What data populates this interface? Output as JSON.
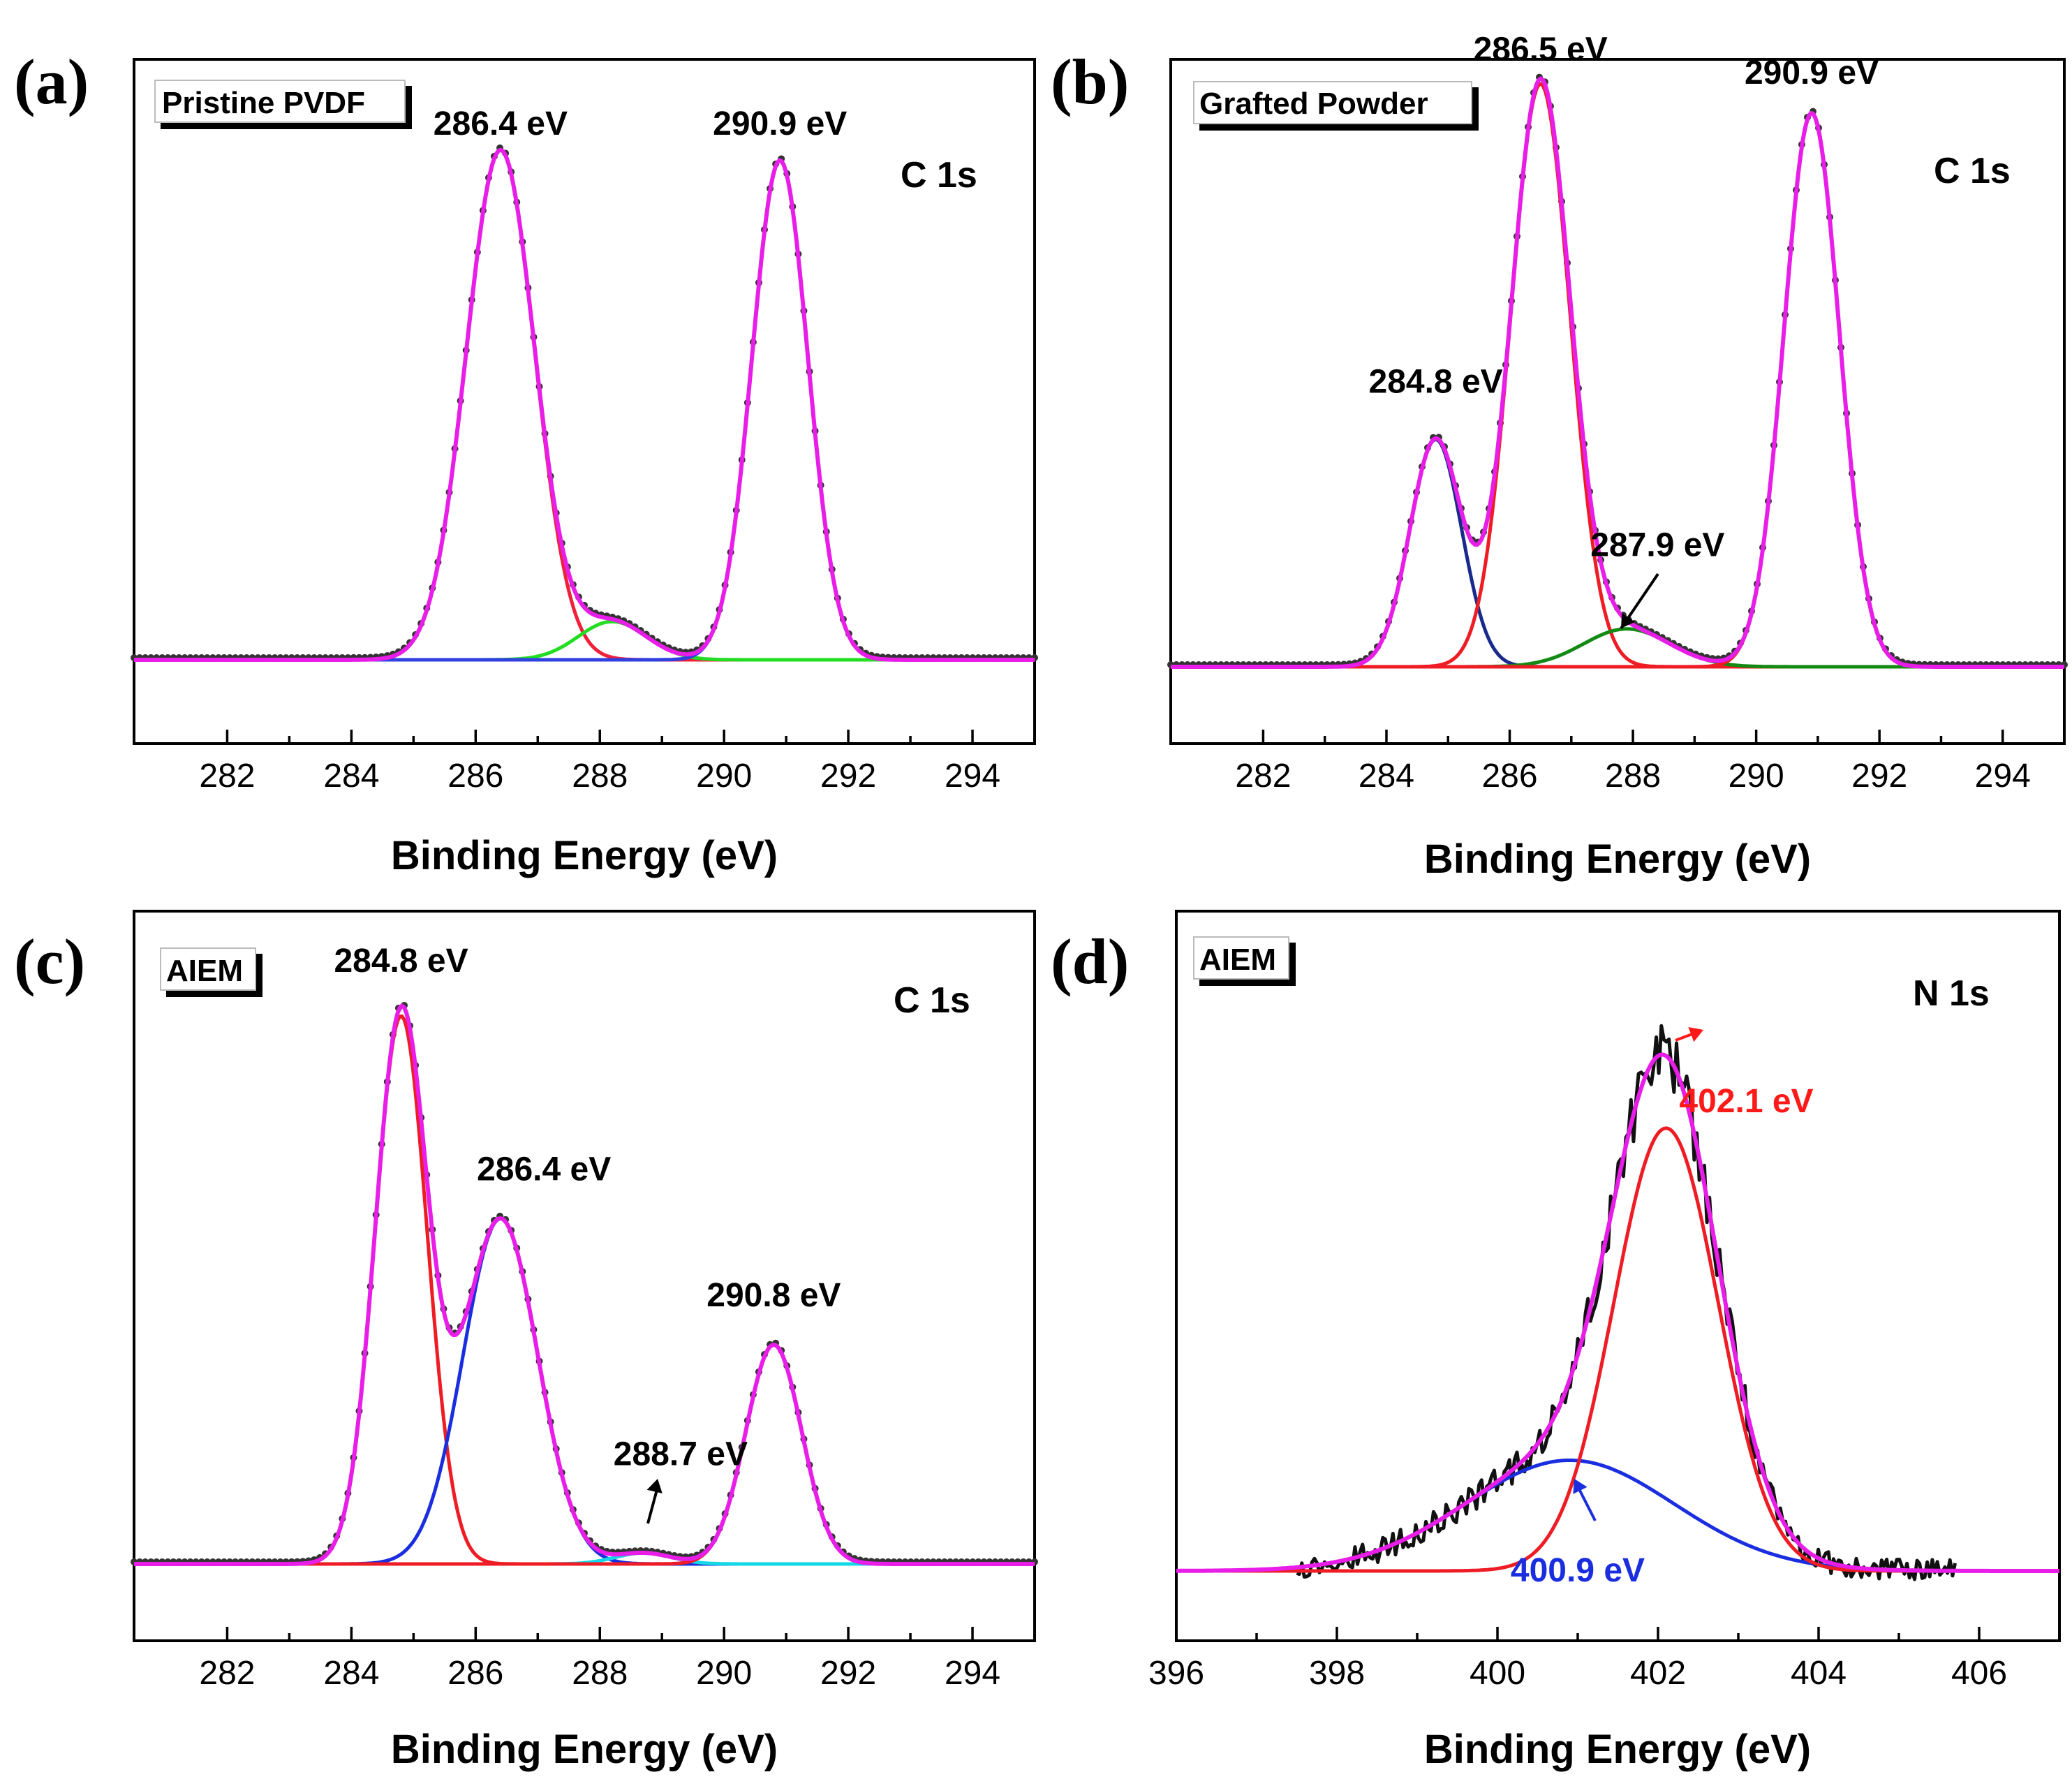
{
  "chart_data": [
    {
      "type": "line",
      "panel_label": "(a)",
      "sample": "Pristine PVDF",
      "core_level": "C 1s",
      "xlabel": "Binding Energy (eV)",
      "ylabel": "",
      "xlim": [
        280.5,
        295
      ],
      "xticks": [
        282,
        284,
        286,
        288,
        290,
        292,
        294
      ],
      "ylim": [
        -0.15,
        1.18
      ],
      "data_style": "dots",
      "noise": 0.0,
      "series": [
        {
          "name": "component 286.4 eV",
          "color": "#f0203a",
          "peaks": [
            [
              286.4,
              1.0,
              0.55
            ]
          ]
        },
        {
          "name": "component 288.2 eV",
          "color": "#22dd22",
          "peaks": [
            [
              288.2,
              0.075,
              0.55
            ]
          ]
        },
        {
          "name": "component 290.9 eV",
          "color": "#3040e0",
          "peaks": [
            [
              290.9,
              0.98,
              0.45
            ]
          ]
        },
        {
          "name": "envelope",
          "color": "#e81ee8",
          "role": "envelope"
        }
      ],
      "annotations": [
        {
          "text": "286.4 eV",
          "x": 286.4,
          "y": 1.03,
          "color": "#000000"
        },
        {
          "text": "290.9 eV",
          "x": 290.9,
          "y": 1.03,
          "color": "#000000"
        }
      ]
    },
    {
      "type": "line",
      "panel_label": "(b)",
      "sample": "Grafted Powder",
      "core_level": "C 1s",
      "xlabel": "Binding Energy (eV)",
      "ylabel": "",
      "xlim": [
        280.5,
        295
      ],
      "xticks": [
        282,
        284,
        286,
        288,
        290,
        292,
        294
      ],
      "ylim": [
        -0.15,
        1.12
      ],
      "data_style": "dots",
      "noise": 0.0,
      "series": [
        {
          "name": "component 284.8 eV",
          "color": "#1a2a8c",
          "peaks": [
            [
              284.8,
              0.39,
              0.42
            ]
          ]
        },
        {
          "name": "component 286.5 eV",
          "color": "#ee1c24",
          "peaks": [
            [
              286.5,
              1.0,
              0.48
            ]
          ]
        },
        {
          "name": "component 287.9 eV",
          "color": "#138a13",
          "peaks": [
            [
              287.9,
              0.065,
              0.7
            ]
          ]
        },
        {
          "name": "component 290.9 eV",
          "color": "#ee1c24",
          "peaks": [
            [
              290.9,
              0.95,
              0.45
            ]
          ]
        },
        {
          "name": "envelope",
          "color": "#e81ee8",
          "role": "envelope"
        }
      ],
      "annotations": [
        {
          "text": "284.8 eV",
          "x": 284.8,
          "y": 0.47,
          "color": "#000000"
        },
        {
          "text": "286.5 eV",
          "x": 286.5,
          "y": 1.04,
          "color": "#000000"
        },
        {
          "text": "287.9 eV",
          "x": 288.4,
          "y": 0.19,
          "color": "#000000"
        },
        {
          "text": "290.9 eV",
          "x": 290.9,
          "y": 1.0,
          "color": "#000000"
        }
      ]
    },
    {
      "type": "line",
      "panel_label": "(c)",
      "sample": "AIEM",
      "core_level": "C 1s",
      "xlabel": "Binding Energy (eV)",
      "ylabel": "",
      "xlim": [
        280.5,
        295
      ],
      "xticks": [
        282,
        284,
        286,
        288,
        290,
        292,
        294
      ],
      "ylim": [
        -0.15,
        1.12
      ],
      "data_style": "dots",
      "noise": 0.0,
      "series": [
        {
          "name": "component 284.8 eV",
          "color": "#ee1c24",
          "peaks": [
            [
              284.8,
              1.0,
              0.42
            ]
          ]
        },
        {
          "name": "component 286.4 eV",
          "color": "#1a2ee0",
          "peaks": [
            [
              286.4,
              0.63,
              0.6
            ]
          ]
        },
        {
          "name": "component 288.7 eV",
          "color": "#14d8e6",
          "peaks": [
            [
              288.7,
              0.02,
              0.45
            ]
          ]
        },
        {
          "name": "component 290.8 eV",
          "color": "#ee1c24",
          "peaks": [
            [
              290.8,
              0.4,
              0.45
            ]
          ]
        },
        {
          "name": "envelope",
          "color": "#e81ee8",
          "role": "envelope"
        }
      ],
      "annotations": [
        {
          "text": "284.8 eV",
          "x": 284.8,
          "y": 1.08,
          "color": "#000000"
        },
        {
          "text": "286.4 eV",
          "x": 287.1,
          "y": 0.7,
          "color": "#000000"
        },
        {
          "text": "288.7 eV",
          "x": 289.3,
          "y": 0.18,
          "color": "#000000"
        },
        {
          "text": "290.8 eV",
          "x": 290.8,
          "y": 0.47,
          "color": "#000000"
        }
      ]
    },
    {
      "type": "line",
      "panel_label": "(d)",
      "sample": "AIEM",
      "core_level": "N 1s",
      "xlabel": "Binding Energy (eV)",
      "ylabel": "",
      "xlim": [
        396,
        407
      ],
      "xticks": [
        396,
        398,
        400,
        402,
        404,
        406
      ],
      "ylim": [
        -0.15,
        1.12
      ],
      "data_style": "noisy",
      "noise": 0.035,
      "series": [
        {
          "name": "component 400.9 eV",
          "color": "#1a2ee0",
          "peaks": [
            [
              400.9,
              0.21,
              1.3
            ]
          ]
        },
        {
          "name": "component 402.1 eV",
          "color": "#ee1c24",
          "peaks": [
            [
              402.1,
              0.84,
              0.65
            ]
          ]
        },
        {
          "name": "envelope",
          "color": "#e81ee8",
          "role": "envelope"
        }
      ],
      "annotations": [
        {
          "text": "402.1 eV",
          "x": 403.1,
          "y": 0.87,
          "color": "#ff1a1a"
        },
        {
          "text": "400.9 eV",
          "x": 401.0,
          "y": -0.02,
          "color": "#1a2ee0"
        }
      ]
    }
  ]
}
